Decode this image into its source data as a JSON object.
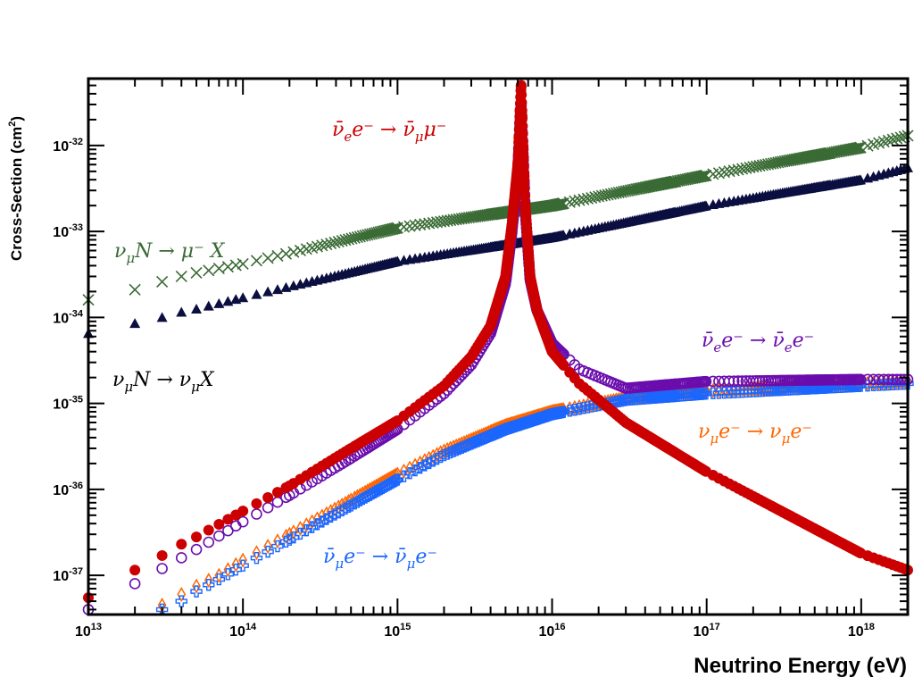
{
  "chart_data": {
    "type": "scatter",
    "xlabel": "Neutrino Energy (eV)",
    "ylabel": "Cross-Section (cm2)",
    "ylabel_main": "Cross-Section (cm",
    "ylabel_sup": "2",
    "ylabel_close": ")",
    "x_scale": "log",
    "y_scale": "log",
    "xlim": [
      10000000000000.0,
      2e+18
    ],
    "ylim": [
      3.5e-38,
      6e-32
    ],
    "x_tick_labels": [
      {
        "value": 10000000000000.0,
        "base": "10",
        "exp": "13"
      },
      {
        "value": 100000000000000.0,
        "base": "10",
        "exp": "14"
      },
      {
        "value": 1000000000000000.0,
        "base": "10",
        "exp": "15"
      },
      {
        "value": 1e+16,
        "base": "10",
        "exp": "16"
      },
      {
        "value": 1e+17,
        "base": "10",
        "exp": "17"
      },
      {
        "value": 1e+18,
        "base": "10",
        "exp": "18"
      }
    ],
    "y_tick_labels": [
      {
        "value": 1e-37,
        "base": "10",
        "exp": "-37"
      },
      {
        "value": 1e-36,
        "base": "10",
        "exp": "-36"
      },
      {
        "value": 1e-35,
        "base": "10",
        "exp": "-35"
      },
      {
        "value": 1e-34,
        "base": "10",
        "exp": "-34"
      },
      {
        "value": 1e-33,
        "base": "10",
        "exp": "-33"
      },
      {
        "value": 1e-32,
        "base": "10",
        "exp": "-32"
      }
    ],
    "grid": false,
    "legend": "none",
    "series": [
      {
        "name": "ν_μ N → μ⁻ X",
        "color": "#3a6b35",
        "marker": "cross",
        "x": [
          10000000000000.0,
          20000000000000.0,
          30000000000000.0,
          40000000000000.0,
          50000000000000.0,
          100000000000000.0,
          1000000000000000.0,
          1e+16,
          1e+17,
          1e+18,
          2e+18
        ],
        "y": [
          1.6e-34,
          2.1e-34,
          2.6e-34,
          3e-34,
          3.3e-34,
          4.2e-34,
          1.1e-33,
          2e-33,
          4.5e-33,
          9.5e-33,
          1.3e-32
        ]
      },
      {
        "name": "ν_μ N → ν_μ X",
        "color": "#0a0f40",
        "marker": "triangle",
        "x": [
          10000000000000.0,
          20000000000000.0,
          30000000000000.0,
          40000000000000.0,
          50000000000000.0,
          100000000000000.0,
          1000000000000000.0,
          1e+16,
          1e+17,
          1e+18,
          2e+18
        ],
        "y": [
          6.5e-35,
          8.5e-35,
          1e-34,
          1.15e-34,
          1.25e-34,
          1.7e-34,
          4.5e-34,
          8.5e-34,
          2e-33,
          4e-33,
          5.5e-33
        ]
      },
      {
        "name": "ν̄_e e⁻ → ν̄_μ μ⁻",
        "color": "#cc0000",
        "marker": "filled-circle",
        "x": [
          10000000000000.0,
          20000000000000.0,
          30000000000000.0,
          40000000000000.0,
          50000000000000.0,
          100000000000000.0,
          200000000000000.0,
          500000000000000.0,
          1000000000000000.0,
          2000000000000000.0,
          3000000000000000.0,
          4000000000000000.0,
          5000000000000000.0,
          5500000000000000.0,
          6000000000000000.0,
          6300000000000000.0,
          6700000000000000.0,
          7200000000000000.0,
          8000000000000000.0,
          1e+16,
          1.5e+16,
          3e+16,
          1e+17,
          1e+18,
          2e+18
        ],
        "y": [
          5.5e-38,
          1.15e-37,
          1.7e-37,
          2.3e-37,
          2.8e-37,
          5.6e-37,
          1.1e-36,
          3e-36,
          6.3e-36,
          1.6e-35,
          3.5e-35,
          8e-35,
          3e-34,
          1.2e-33,
          6e-33,
          5e-32,
          2e-33,
          3e-34,
          1.2e-34,
          4e-35,
          1.7e-35,
          6e-36,
          1.6e-36,
          1.8e-37,
          1.15e-37
        ]
      },
      {
        "name": "ν̄_e e⁻ → ν̄_e e⁻",
        "color": "#6a0dad",
        "marker": "open-circle",
        "x": [
          10000000000000.0,
          20000000000000.0,
          30000000000000.0,
          40000000000000.0,
          50000000000000.0,
          100000000000000.0,
          200000000000000.0,
          500000000000000.0,
          1000000000000000.0,
          2000000000000000.0,
          3000000000000000.0,
          4000000000000000.0,
          5000000000000000.0,
          5500000000000000.0,
          6000000000000000.0,
          6300000000000000.0,
          6700000000000000.0,
          7200000000000000.0,
          8000000000000000.0,
          1e+16,
          1.5e+16,
          3e+16,
          1e+17,
          1e+18,
          2e+18
        ],
        "y": [
          4e-38,
          8e-38,
          1.2e-37,
          1.6e-37,
          2e-37,
          4.2e-37,
          8.5e-37,
          2.3e-36,
          5e-36,
          1.3e-35,
          2.8e-35,
          6.5e-35,
          2.5e-34,
          1e-33,
          5e-33,
          3e-32,
          1.8e-33,
          2.8e-34,
          1.2e-34,
          5e-35,
          2.5e-35,
          1.5e-35,
          1.8e-35,
          1.9e-35,
          1.9e-35
        ]
      },
      {
        "name": "ν_μ e⁻ → ν_μ e⁻",
        "color": "#ff6600",
        "marker": "open-diamond",
        "x": [
          30000000000000.0,
          40000000000000.0,
          50000000000000.0,
          70000000000000.0,
          100000000000000.0,
          200000000000000.0,
          500000000000000.0,
          1000000000000000.0,
          2000000000000000.0,
          5000000000000000.0,
          1e+16,
          3e+16,
          1e+17,
          1e+18,
          2e+18
        ],
        "y": [
          4.5e-38,
          6e-38,
          7.5e-38,
          1e-37,
          1.5e-37,
          3e-37,
          7.5e-37,
          1.5e-36,
          2.8e-36,
          5.5e-36,
          8e-36,
          1.15e-35,
          1.4e-35,
          1.7e-35,
          1.8e-35
        ]
      },
      {
        "name": "ν̄_μ e⁻ → ν̄_μ e⁻",
        "color": "#1a66ff",
        "marker": "open-cross",
        "x": [
          30000000000000.0,
          40000000000000.0,
          50000000000000.0,
          70000000000000.0,
          100000000000000.0,
          200000000000000.0,
          500000000000000.0,
          1000000000000000.0,
          2000000000000000.0,
          5000000000000000.0,
          1e+16,
          3e+16,
          1e+17,
          1e+18,
          2e+18
        ],
        "y": [
          4e-38,
          5e-38,
          6.5e-38,
          9e-38,
          1.3e-37,
          2.6e-37,
          6.5e-37,
          1.3e-36,
          2.5e-36,
          5e-36,
          7.5e-36,
          1.1e-35,
          1.3e-35,
          1.6e-35,
          1.7e-35
        ]
      }
    ],
    "annotations": [
      {
        "text_main": "ν̄",
        "sub1": "e",
        "mid": "e⁻ → ν̄",
        "sub2": "μ",
        "end": "μ⁻",
        "color": "#cc0000"
      },
      {
        "text_main": "ν",
        "sub1": "μ",
        "mid": "N → μ⁻ X",
        "sub2": "",
        "end": "",
        "color": "#3a6b35"
      },
      {
        "text_main": "ν",
        "sub1": "μ",
        "mid": "N → ν",
        "sub2": "μ",
        "end": "X",
        "color": "#000000"
      },
      {
        "text_main": "ν̄",
        "sub1": "e",
        "mid": "e⁻ → ν̄",
        "sub2": "e",
        "end": "e⁻",
        "color": "#6a0dad"
      },
      {
        "text_main": "ν",
        "sub1": "μ",
        "mid": "e⁻ → ν",
        "sub2": "μ",
        "end": "e⁻",
        "color": "#ff6600"
      },
      {
        "text_main": "ν̄",
        "sub1": "μ",
        "mid": "e⁻ → ν̄",
        "sub2": "μ",
        "end": "e⁻",
        "color": "#1a66ff"
      }
    ]
  }
}
